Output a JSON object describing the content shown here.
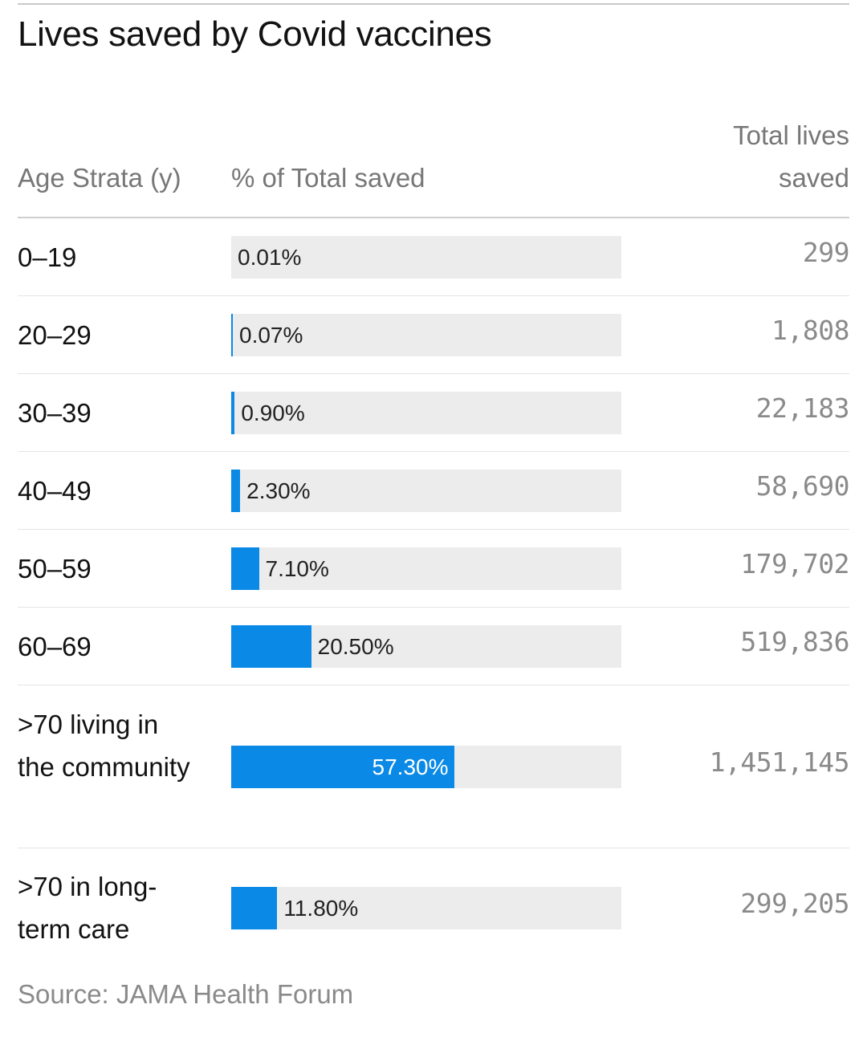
{
  "title": "Lives saved by Covid vaccines",
  "headers": {
    "age": "Age Strata (y)",
    "pct": "% of Total saved",
    "total_line1": "Total lives",
    "total_line2": "saved"
  },
  "source": "Source: JAMA Health Forum",
  "colors": {
    "bar": "#0a8ae6",
    "track": "#ececec"
  },
  "chart_data": {
    "type": "table",
    "title": "Lives saved by Covid vaccines",
    "columns": [
      "Age Strata (y)",
      "% of Total saved",
      "Total lives saved"
    ],
    "rows": [
      {
        "age": "0–19",
        "pct": 0.01,
        "pct_label": "0.01%",
        "total": "299"
      },
      {
        "age": "20–29",
        "pct": 0.07,
        "pct_label": "0.07%",
        "total": "1,808"
      },
      {
        "age": "30–39",
        "pct": 0.9,
        "pct_label": "0.90%",
        "total": "22,183"
      },
      {
        "age": "40–49",
        "pct": 2.3,
        "pct_label": "2.30%",
        "total": "58,690"
      },
      {
        "age": "50–59",
        "pct": 7.1,
        "pct_label": "7.10%",
        "total": "179,702"
      },
      {
        "age": "60–69",
        "pct": 20.5,
        "pct_label": "20.50%",
        "total": "519,836"
      },
      {
        "age": ">70 living in the community",
        "pct": 57.3,
        "pct_label": "57.30%",
        "total": "1,451,145"
      },
      {
        "age": ">70 in long-term care",
        "pct": 11.8,
        "pct_label": "11.80%",
        "total": "299,205"
      }
    ],
    "xlim": [
      0,
      100
    ]
  }
}
